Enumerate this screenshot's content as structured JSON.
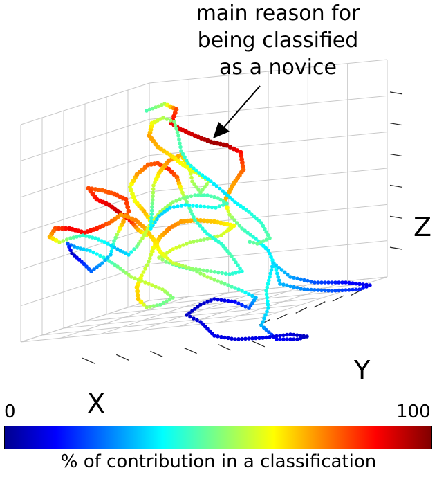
{
  "chart_data": {
    "type": "scatter",
    "projection": "3d",
    "annotation": [
      "main reason for",
      "being classified",
      "as a novice"
    ],
    "axes": {
      "xlabel": "X",
      "ylabel": "Y",
      "zlabel": "Z"
    },
    "grid": true,
    "colorbar": {
      "colormap": "jet",
      "min_label": "0",
      "max_label": "100",
      "title": "% of contribution in a classification",
      "range": [
        0,
        100
      ]
    },
    "colormap_stops": [
      "#00008f",
      "#0000ff",
      "#00ffff",
      "#ffff00",
      "#ff0000",
      "#800000"
    ]
  }
}
